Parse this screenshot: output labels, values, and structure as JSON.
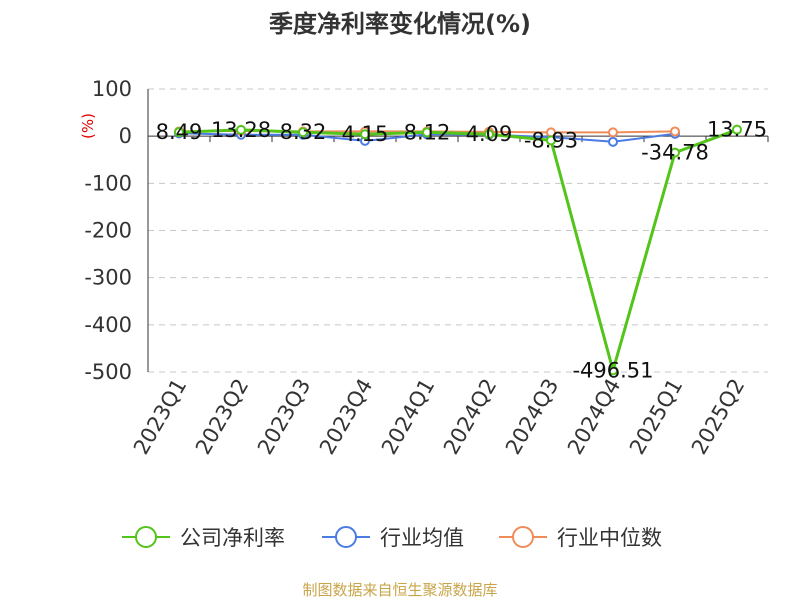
{
  "chart_data": {
    "type": "line",
    "title": "季度净利率变化情况(%)",
    "unit_label": "(%)",
    "categories": [
      "2023Q1",
      "2023Q2",
      "2023Q3",
      "2023Q4",
      "2024Q1",
      "2024Q2",
      "2024Q3",
      "2024Q4",
      "2025Q1",
      "2025Q2"
    ],
    "ylim": [
      -500,
      100
    ],
    "yticks": [
      100,
      0,
      -100,
      -200,
      -300,
      -400,
      -500
    ],
    "grid": true,
    "legend_position": "bottom",
    "series": [
      {
        "name": "公司净利率",
        "color": "#52c41a",
        "width": 3,
        "values": [
          8.49,
          13.28,
          8.32,
          4.15,
          8.12,
          4.09,
          -8.93,
          -496.51,
          -34.78,
          13.75
        ]
      },
      {
        "name": "行业均值",
        "color": "#4b7be5",
        "width": 2,
        "values": [
          6,
          3,
          3,
          -10,
          4,
          3,
          -2,
          -12,
          5,
          null
        ]
      },
      {
        "name": "行业中位数",
        "color": "#f08c5a",
        "width": 2,
        "values": [
          10,
          11,
          10,
          10,
          10,
          9,
          8,
          8,
          10,
          null
        ]
      }
    ],
    "data_labels": [
      "8.49",
      "13.28",
      "8.32",
      "4.15",
      "8.12",
      "4.09",
      "-8.93",
      "-496.51",
      "-34.78",
      "13.75"
    ],
    "source": "制图数据来自恒生聚源数据库"
  }
}
